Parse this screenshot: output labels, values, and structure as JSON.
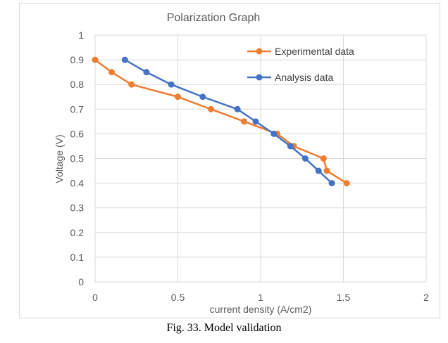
{
  "caption": "Fig. 33. Model validation",
  "chart_data": {
    "type": "line",
    "title": "Polarization Graph",
    "xlabel": "current density (A/cm2)",
    "ylabel": "Voltage (V)",
    "xlim": [
      0,
      2
    ],
    "ylim": [
      0,
      1
    ],
    "xticks": [
      "0",
      "0.5",
      "1",
      "1.5",
      "2"
    ],
    "yticks": [
      "0",
      "0.1",
      "0.2",
      "0.3",
      "0.4",
      "0.5",
      "0.6",
      "0.7",
      "0.8",
      "0.9",
      "1"
    ],
    "grid": true,
    "legend_position": "top-right",
    "series": [
      {
        "name": "Experimental data",
        "color": "#ED7D31",
        "x": [
          0,
          0.1,
          0.22,
          0.5,
          0.7,
          0.9,
          1.1,
          1.2,
          1.38,
          1.4,
          1.52
        ],
        "y": [
          0.9,
          0.85,
          0.8,
          0.75,
          0.7,
          0.65,
          0.6,
          0.55,
          0.5,
          0.45,
          0.4
        ]
      },
      {
        "name": "Analysis data",
        "color": "#4472C4",
        "x": [
          0.18,
          0.31,
          0.46,
          0.65,
          0.86,
          0.97,
          1.08,
          1.18,
          1.27,
          1.35,
          1.43
        ],
        "y": [
          0.9,
          0.85,
          0.8,
          0.75,
          0.7,
          0.65,
          0.6,
          0.55,
          0.5,
          0.45,
          0.4
        ]
      }
    ]
  }
}
